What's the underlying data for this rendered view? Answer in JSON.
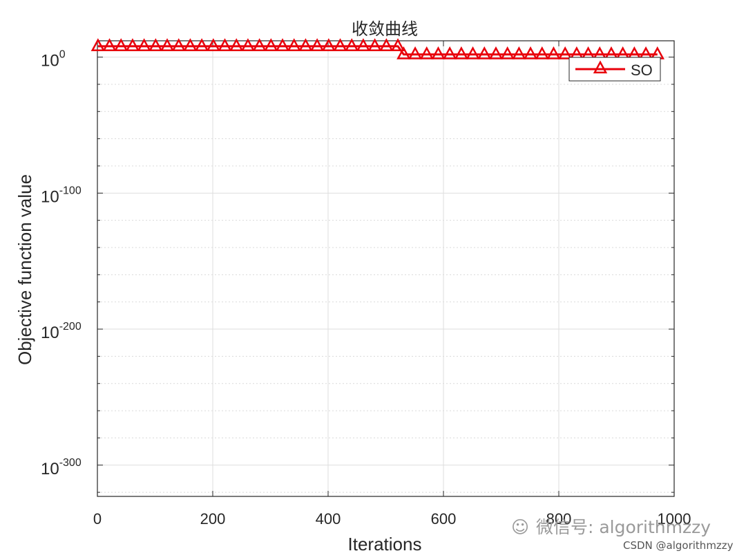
{
  "chart_data": {
    "type": "line",
    "title": "收敛曲线",
    "xlabel": "Iterations",
    "ylabel": "Objective function value",
    "xlim": [
      0,
      1000
    ],
    "ylim_log10": [
      -323,
      12
    ],
    "y_scale": "log",
    "grid": true,
    "minor_grid": true,
    "legend_position": "top-right",
    "x_ticks": [
      0,
      200,
      400,
      600,
      800,
      1000
    ],
    "x_tick_labels": [
      "0",
      "200",
      "400",
      "600",
      "800",
      "1000"
    ],
    "y_ticks_log10": [
      0,
      -100,
      -200,
      -300
    ],
    "y_tick_labels": [
      {
        "base": "10",
        "exp": "0"
      },
      {
        "base": "10",
        "exp": "-100"
      },
      {
        "base": "10",
        "exp": "-200"
      },
      {
        "base": "10",
        "exp": "-300"
      }
    ],
    "series": [
      {
        "name": "SO",
        "color": "#e8000b",
        "marker": "triangle",
        "x": [
          1,
          21,
          41,
          61,
          81,
          101,
          121,
          141,
          161,
          181,
          201,
          221,
          241,
          261,
          281,
          301,
          321,
          341,
          361,
          381,
          401,
          421,
          441,
          461,
          481,
          501,
          521,
          531,
          551,
          571,
          591,
          611,
          631,
          651,
          671,
          691,
          711,
          731,
          751,
          771,
          791,
          811,
          831,
          851,
          871,
          891,
          911,
          931,
          951,
          971
        ],
        "y_log10": [
          8,
          8,
          8,
          8,
          8,
          8,
          8,
          8,
          8,
          8,
          8,
          8,
          8,
          8,
          8,
          8,
          8,
          8,
          8,
          8,
          8,
          8,
          8,
          8,
          8,
          8,
          8,
          2,
          2,
          2,
          2,
          2,
          2,
          2,
          2,
          2,
          2,
          2,
          2,
          2,
          2,
          2,
          2,
          2,
          2,
          2,
          2,
          2,
          2,
          2
        ]
      }
    ]
  },
  "watermark": {
    "wechat_text": "微信号: algorithmzzy",
    "csdn_text": "CSDN @algorithmzzy"
  }
}
